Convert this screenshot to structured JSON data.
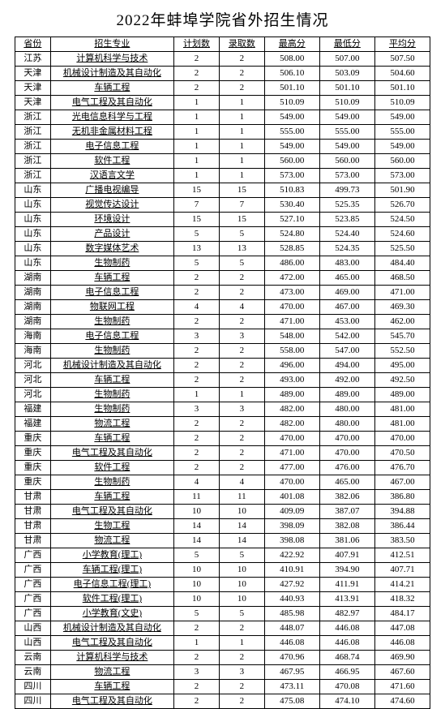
{
  "title": "2022年蚌埠学院省外招生情况",
  "headers": [
    "省份",
    "招生专业",
    "计划数",
    "录取数",
    "最高分",
    "最低分",
    "平均分"
  ],
  "rows": [
    [
      "江苏",
      "计算机科学与技术",
      "2",
      "2",
      "508.00",
      "507.00",
      "507.50"
    ],
    [
      "天津",
      "机械设计制造及其自动化",
      "2",
      "2",
      "506.10",
      "503.09",
      "504.60"
    ],
    [
      "天津",
      "车辆工程",
      "2",
      "2",
      "501.10",
      "501.10",
      "501.10"
    ],
    [
      "天津",
      "电气工程及其自动化",
      "1",
      "1",
      "510.09",
      "510.09",
      "510.09"
    ],
    [
      "浙江",
      "光电信息科学与工程",
      "1",
      "1",
      "549.00",
      "549.00",
      "549.00"
    ],
    [
      "浙江",
      "无机非金属材料工程",
      "1",
      "1",
      "555.00",
      "555.00",
      "555.00"
    ],
    [
      "浙江",
      "电子信息工程",
      "1",
      "1",
      "549.00",
      "549.00",
      "549.00"
    ],
    [
      "浙江",
      "软件工程",
      "1",
      "1",
      "560.00",
      "560.00",
      "560.00"
    ],
    [
      "浙江",
      "汉语言文学",
      "1",
      "1",
      "573.00",
      "573.00",
      "573.00"
    ],
    [
      "山东",
      "广播电视编导",
      "15",
      "15",
      "510.83",
      "499.73",
      "501.90"
    ],
    [
      "山东",
      "视觉传达设计",
      "7",
      "7",
      "530.40",
      "525.35",
      "526.70"
    ],
    [
      "山东",
      "环境设计",
      "15",
      "15",
      "527.10",
      "523.85",
      "524.50"
    ],
    [
      "山东",
      "产品设计",
      "5",
      "5",
      "524.80",
      "524.40",
      "524.60"
    ],
    [
      "山东",
      "数字媒体艺术",
      "13",
      "13",
      "528.85",
      "524.35",
      "525.50"
    ],
    [
      "山东",
      "生物制药",
      "5",
      "5",
      "486.00",
      "483.00",
      "484.40"
    ],
    [
      "湖南",
      "车辆工程",
      "2",
      "2",
      "472.00",
      "465.00",
      "468.50"
    ],
    [
      "湖南",
      "电子信息工程",
      "2",
      "2",
      "473.00",
      "469.00",
      "471.00"
    ],
    [
      "湖南",
      "物联网工程",
      "4",
      "4",
      "470.00",
      "467.00",
      "469.30"
    ],
    [
      "湖南",
      "生物制药",
      "2",
      "2",
      "471.00",
      "453.00",
      "462.00"
    ],
    [
      "海南",
      "电子信息工程",
      "3",
      "3",
      "548.00",
      "542.00",
      "545.70"
    ],
    [
      "海南",
      "生物制药",
      "2",
      "2",
      "558.00",
      "547.00",
      "552.50"
    ],
    [
      "河北",
      "机械设计制造及其自动化",
      "2",
      "2",
      "496.00",
      "494.00",
      "495.00"
    ],
    [
      "河北",
      "车辆工程",
      "2",
      "2",
      "493.00",
      "492.00",
      "492.50"
    ],
    [
      "河北",
      "生物制药",
      "1",
      "1",
      "489.00",
      "489.00",
      "489.00"
    ],
    [
      "福建",
      "生物制药",
      "3",
      "3",
      "482.00",
      "480.00",
      "481.00"
    ],
    [
      "福建",
      "物流工程",
      "2",
      "2",
      "482.00",
      "480.00",
      "481.00"
    ],
    [
      "重庆",
      "车辆工程",
      "2",
      "2",
      "470.00",
      "470.00",
      "470.00"
    ],
    [
      "重庆",
      "电气工程及其自动化",
      "2",
      "2",
      "471.00",
      "470.00",
      "470.50"
    ],
    [
      "重庆",
      "软件工程",
      "2",
      "2",
      "477.00",
      "476.00",
      "476.70"
    ],
    [
      "重庆",
      "生物制药",
      "4",
      "4",
      "470.00",
      "465.00",
      "467.00"
    ],
    [
      "甘肃",
      "车辆工程",
      "11",
      "11",
      "401.08",
      "382.06",
      "386.80"
    ],
    [
      "甘肃",
      "电气工程及其自动化",
      "10",
      "10",
      "409.09",
      "387.07",
      "394.88"
    ],
    [
      "甘肃",
      "生物工程",
      "14",
      "14",
      "398.09",
      "382.08",
      "386.44"
    ],
    [
      "甘肃",
      "物流工程",
      "14",
      "14",
      "398.08",
      "381.06",
      "383.50"
    ],
    [
      "广西",
      "小学教育(理工)",
      "5",
      "5",
      "422.92",
      "407.91",
      "412.51"
    ],
    [
      "广西",
      "车辆工程(理工)",
      "10",
      "10",
      "410.91",
      "394.90",
      "407.71"
    ],
    [
      "广西",
      "电子信息工程(理工)",
      "10",
      "10",
      "427.92",
      "411.91",
      "414.21"
    ],
    [
      "广西",
      "软件工程(理工)",
      "10",
      "10",
      "440.93",
      "413.91",
      "418.32"
    ],
    [
      "广西",
      "小学教育(文史)",
      "5",
      "5",
      "485.98",
      "482.97",
      "484.17"
    ],
    [
      "山西",
      "机械设计制造及其自动化",
      "2",
      "2",
      "448.07",
      "446.08",
      "447.08"
    ],
    [
      "山西",
      "电气工程及其自动化",
      "1",
      "1",
      "446.08",
      "446.08",
      "446.08"
    ],
    [
      "云南",
      "计算机科学与技术",
      "2",
      "2",
      "470.96",
      "468.74",
      "469.90"
    ],
    [
      "云南",
      "物流工程",
      "3",
      "3",
      "467.95",
      "466.95",
      "467.60"
    ],
    [
      "四川",
      "车辆工程",
      "2",
      "2",
      "473.11",
      "470.08",
      "471.60"
    ],
    [
      "四川",
      "电气工程及其自动化",
      "2",
      "2",
      "475.08",
      "474.10",
      "474.60"
    ]
  ],
  "colors": {
    "background": "#ffffff",
    "text": "#000000",
    "border": "#000000"
  },
  "fonts": {
    "title_size": 19,
    "cell_size": 11,
    "family": "SimSun"
  }
}
